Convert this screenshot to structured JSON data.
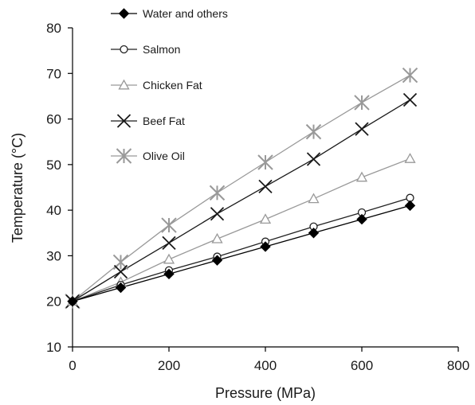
{
  "chart_data": {
    "type": "line",
    "title": "",
    "xlabel": "Pressure (MPa)",
    "ylabel": "Temperature (°C)",
    "xlim": [
      0,
      800
    ],
    "ylim": [
      10,
      80
    ],
    "xticks": [
      0,
      200,
      400,
      600,
      800
    ],
    "yticks": [
      10,
      20,
      30,
      40,
      50,
      60,
      70,
      80
    ],
    "grid": false,
    "legend_placement": "top-left",
    "x": [
      0,
      100,
      200,
      300,
      400,
      500,
      600,
      700
    ],
    "series": [
      {
        "name": "Water and others",
        "marker": "diamond-filled",
        "color": "#000000",
        "values": [
          20,
          23,
          26,
          29,
          32,
          35,
          38,
          41
        ]
      },
      {
        "name": "Salmon",
        "marker": "circle-open",
        "color": "#222222",
        "values": [
          20,
          23.6,
          26.8,
          29.8,
          33.1,
          36.4,
          39.5,
          42.7
        ]
      },
      {
        "name": "Chicken Fat",
        "marker": "triangle-open",
        "color": "#999999",
        "values": [
          20,
          24.2,
          29.2,
          33.7,
          38,
          42.5,
          47.2,
          51.3
        ]
      },
      {
        "name": "Beef Fat",
        "marker": "x",
        "color": "#1a1a1a",
        "values": [
          20,
          26.5,
          32.8,
          39.2,
          45.2,
          51.2,
          57.8,
          64.2
        ]
      },
      {
        "name": "Olive Oil",
        "marker": "asterisk",
        "color": "#999999",
        "values": [
          20,
          28.6,
          36.7,
          43.8,
          50.5,
          57.2,
          63.6,
          69.6
        ]
      }
    ]
  }
}
